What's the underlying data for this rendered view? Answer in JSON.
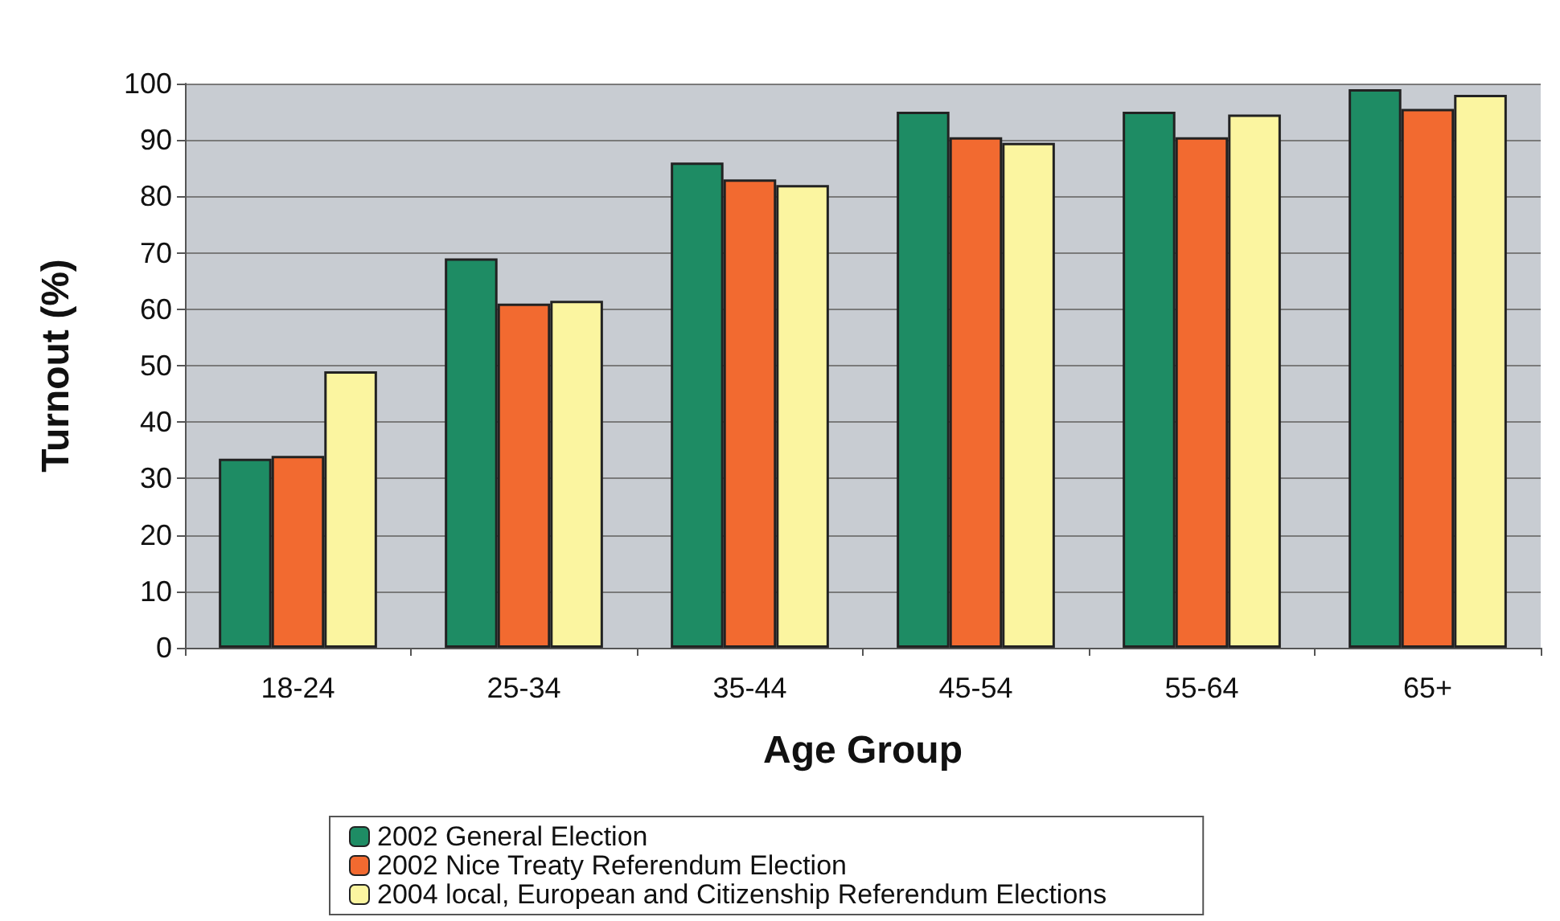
{
  "chart_data": {
    "type": "bar",
    "xlabel": "Age Group",
    "ylabel": "Turnout (%)",
    "categories": [
      "18-24",
      "25-34",
      "35-44",
      "45-54",
      "55-64",
      "65+"
    ],
    "series": [
      {
        "name": "2002 General Election",
        "color": "#1e8c64",
        "values": [
          33.5,
          69,
          86,
          95,
          95,
          99
        ]
      },
      {
        "name": "2002 Nice Treaty Referendum Election",
        "color": "#f26a30",
        "values": [
          34,
          61,
          83,
          90.5,
          90.5,
          95.5
        ]
      },
      {
        "name": "2004 local, European and Citizenship Referendum Elections",
        "color": "#fbf5a0",
        "values": [
          49,
          61.5,
          82,
          89.5,
          94.5,
          98
        ]
      }
    ],
    "ylim": [
      0,
      100
    ],
    "yticks": [
      0,
      10,
      20,
      30,
      40,
      50,
      60,
      70,
      80,
      90,
      100
    ],
    "grid": "y",
    "legend": "bottom"
  }
}
